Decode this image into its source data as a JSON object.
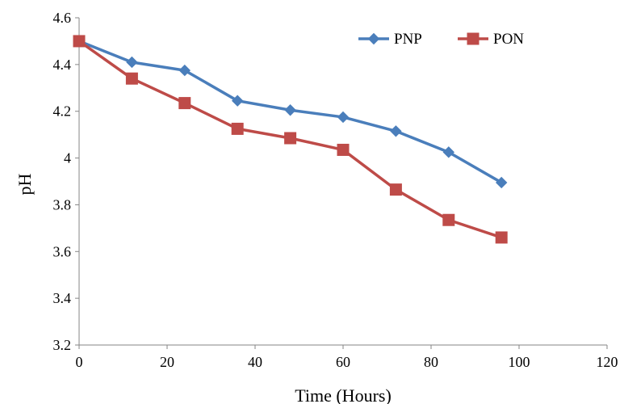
{
  "chart_data": {
    "type": "line",
    "title": "",
    "xlabel": "Time (Hours)",
    "ylabel": "pH",
    "xlim": [
      0,
      120
    ],
    "ylim": [
      3.2,
      4.6
    ],
    "x_ticks": [
      0,
      20,
      40,
      60,
      80,
      100,
      120
    ],
    "y_ticks": [
      3.2,
      3.4,
      3.6,
      3.8,
      4,
      4.2,
      4.4,
      4.6
    ],
    "grid": false,
    "legend_position": "top-right",
    "x": [
      0,
      12,
      24,
      36,
      48,
      60,
      72,
      84,
      96
    ],
    "series": [
      {
        "name": "PNP",
        "color": "#4a7ebb",
        "marker": "diamond",
        "values": [
          4.5,
          4.41,
          4.375,
          4.245,
          4.205,
          4.175,
          4.115,
          4.025,
          3.895
        ]
      },
      {
        "name": "PON",
        "color": "#be4b48",
        "marker": "square",
        "values": [
          4.5,
          4.34,
          4.235,
          4.125,
          4.085,
          4.035,
          3.865,
          3.735,
          3.66
        ]
      }
    ]
  }
}
